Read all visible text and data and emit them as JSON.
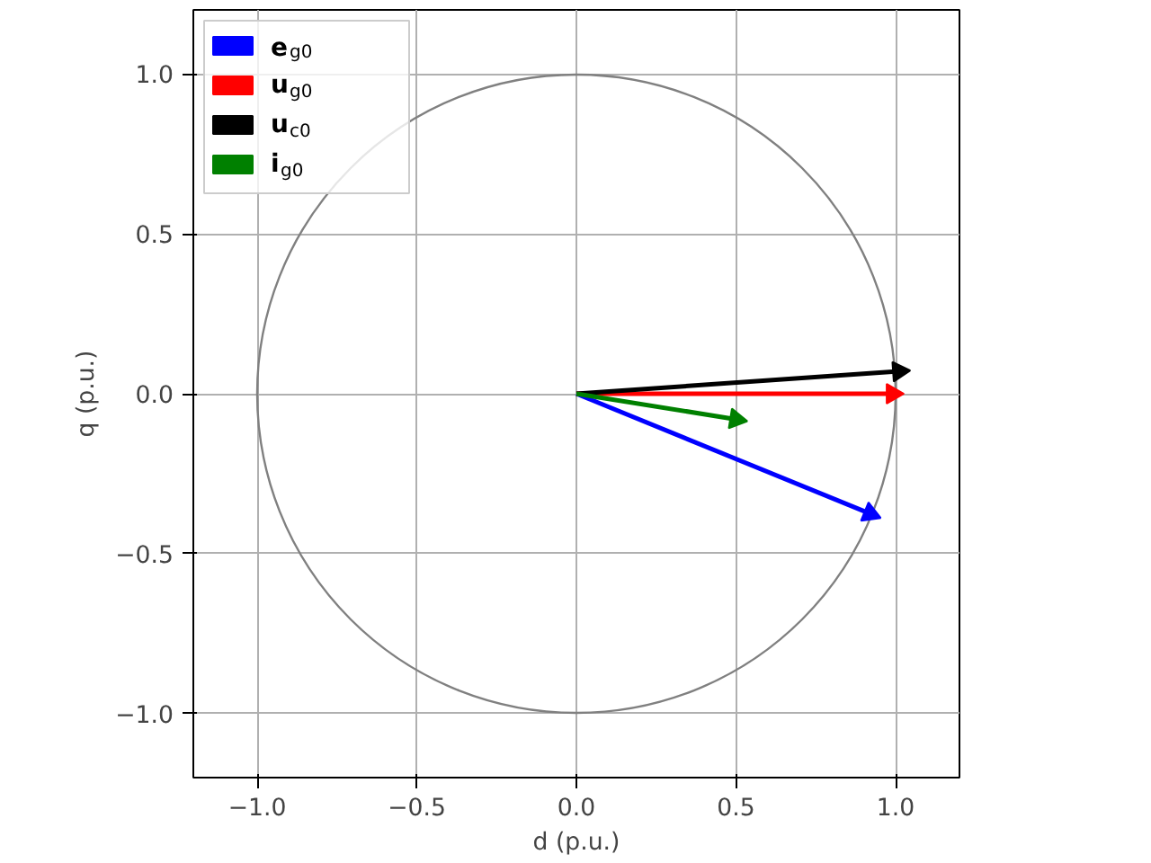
{
  "chart_data": {
    "type": "line",
    "xlabel": "d (p.u.)",
    "ylabel": "q (p.u.)",
    "xlim": [
      -1.2,
      1.2
    ],
    "ylim": [
      -1.2,
      1.2
    ],
    "xticks": [
      {
        "value": -1.0,
        "label": "−1.0"
      },
      {
        "value": -0.5,
        "label": "−0.5"
      },
      {
        "value": 0.0,
        "label": "0.0"
      },
      {
        "value": 0.5,
        "label": "0.5"
      },
      {
        "value": 1.0,
        "label": "1.0"
      }
    ],
    "yticks": [
      {
        "value": -1.0,
        "label": "−1.0"
      },
      {
        "value": -0.5,
        "label": "−0.5"
      },
      {
        "value": 0.0,
        "label": "0.0"
      },
      {
        "value": 0.5,
        "label": "0.5"
      },
      {
        "value": 1.0,
        "label": "1.0"
      }
    ],
    "grid": true,
    "legend": "top left",
    "series": [
      {
        "name": "e$_{g0}$",
        "color": "#0000ff",
        "x": [
          0.0,
          0.92
        ],
        "values": [
          0.0,
          -0.375
        ]
      },
      {
        "name": "u$_{g0}$",
        "color": "#ff0000",
        "x": [
          0.0,
          0.99
        ],
        "values": [
          0.0,
          0.0
        ]
      },
      {
        "name": "u$_{c0}$",
        "color": "#000000",
        "x": [
          0.0,
          1.01
        ],
        "values": [
          0.0,
          0.07
        ]
      },
      {
        "name": "i$_{g0}$",
        "color": "#008000",
        "x": [
          0.0,
          0.5
        ],
        "values": [
          0.0,
          -0.08
        ]
      }
    ]
  }
}
